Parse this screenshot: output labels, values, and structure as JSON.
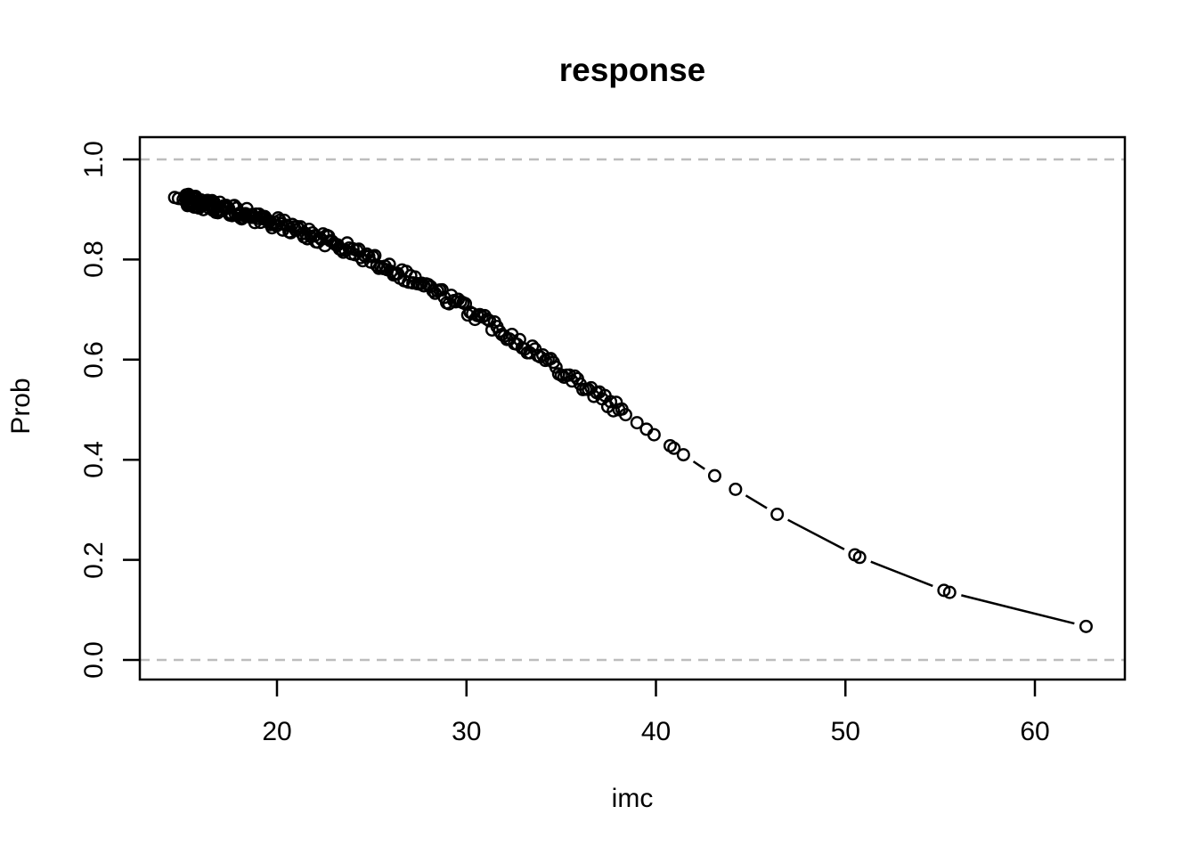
{
  "title": "response",
  "axes": {
    "x": {
      "label": "imc",
      "tick_values": [
        20,
        30,
        40,
        50,
        60
      ],
      "tick_labels": [
        "20",
        "30",
        "40",
        "50",
        "60"
      ],
      "range": [
        12.7,
        64.7
      ]
    },
    "y": {
      "label": "Prob",
      "tick_values": [
        0.0,
        0.2,
        0.4,
        0.6,
        0.8,
        1.0
      ],
      "tick_labels": [
        "0.0",
        "0.2",
        "0.4",
        "0.6",
        "0.8",
        "1.0"
      ],
      "range": [
        -0.04,
        1.04
      ]
    }
  },
  "colors": {
    "foreground": "#000000",
    "background": "#ffffff",
    "reference_line": "#bdbdbd"
  },
  "chart_data": {
    "type": "scatter",
    "title": "response",
    "xlabel": "imc",
    "ylabel": "Prob",
    "xlim": [
      12.7,
      64.7
    ],
    "ylim": [
      -0.04,
      1.04
    ],
    "grid": "off",
    "legend": "none",
    "marker": "open-circle",
    "connect_style": "segments between consecutive points with gaps at markers (R type='b')",
    "reference_lines": {
      "y_values": [
        0.0,
        1.0
      ],
      "style": "dashed",
      "color": "#bdbdbd"
    },
    "model": {
      "type": "logistic",
      "formula": "prob = 1 / (1 + exp(-(4.05 - 0.1065 * imc)))",
      "intercept": 4.05,
      "slope": -0.1065
    },
    "lead_points": [
      [
        14.6,
        0.924
      ],
      [
        14.8,
        0.922
      ],
      [
        15.05,
        0.92
      ]
    ],
    "dense_band": {
      "description": "hundreds of overlapping fitted-probability points from imc 15.2 to 38.2 following the logistic curve",
      "x_min": 15.2,
      "x_max": 38.2,
      "n": 255,
      "power": 1.65,
      "y_jitter": 0.012,
      "seed": 42
    },
    "points": [
      [
        38.4,
        0.49
      ],
      [
        39.0,
        0.474
      ],
      [
        39.5,
        0.461
      ],
      [
        39.9,
        0.45
      ],
      [
        40.75,
        0.428
      ],
      [
        40.95,
        0.423
      ],
      [
        41.45,
        0.41
      ],
      [
        43.1,
        0.368
      ],
      [
        44.2,
        0.341
      ],
      [
        46.4,
        0.291
      ],
      [
        50.5,
        0.21
      ],
      [
        50.75,
        0.205
      ],
      [
        55.2,
        0.139
      ],
      [
        55.5,
        0.135
      ],
      [
        62.7,
        0.067
      ]
    ]
  }
}
